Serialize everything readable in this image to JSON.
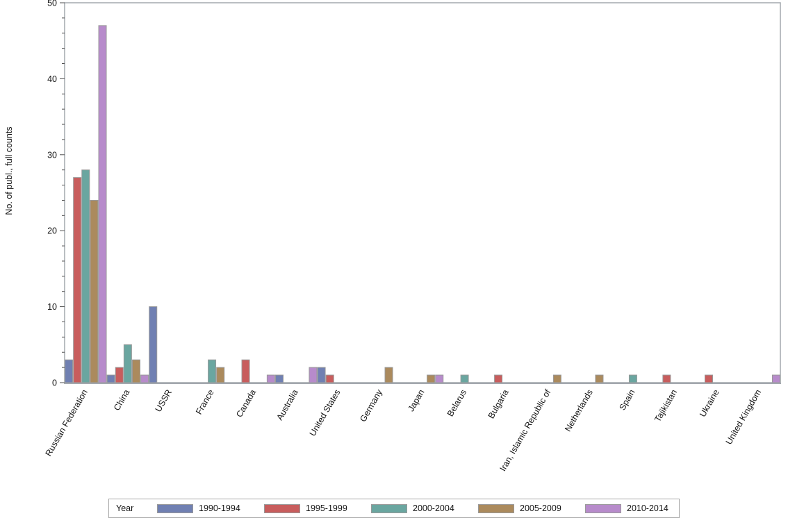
{
  "chart_data": {
    "type": "bar",
    "title": "",
    "xlabel": "",
    "ylabel": "No. of publ., full counts",
    "ylim": [
      0,
      50
    ],
    "ytick_major": 10,
    "ytick_minor": 2,
    "grid": false,
    "legend_position": "bottom",
    "legend_title": "Year",
    "frame_color": "#a3a8ae",
    "tick_color": "#4d4d4d",
    "bar_stroke_color": "#9a9a9a",
    "categories": [
      "Russian Federation",
      "China",
      "USSR",
      "France",
      "Canada",
      "Australia",
      "United States",
      "Germany",
      "Japan",
      "Belarus",
      "Bulgaria",
      "Iran, Islamic Republic of",
      "Netherlands",
      "Spain",
      "Tajikistan",
      "Ukraine",
      "United Kingdom"
    ],
    "series": [
      {
        "name": "1990-1994",
        "color": "#7080b2",
        "values": [
          3,
          1,
          10,
          0,
          0,
          1,
          2,
          0,
          0,
          0,
          0,
          0,
          0,
          0,
          0,
          0,
          0
        ]
      },
      {
        "name": "1995-1999",
        "color": "#c85d5d",
        "values": [
          27,
          2,
          0,
          0,
          3,
          0,
          1,
          0,
          0,
          0,
          1,
          0,
          0,
          0,
          1,
          1,
          0
        ]
      },
      {
        "name": "2000-2004",
        "color": "#6aa6a0",
        "values": [
          28,
          5,
          0,
          3,
          0,
          0,
          0,
          0,
          0,
          1,
          0,
          0,
          0,
          1,
          0,
          0,
          0
        ]
      },
      {
        "name": "2005-2009",
        "color": "#ab8a5d",
        "values": [
          24,
          3,
          0,
          2,
          0,
          0,
          0,
          2,
          1,
          0,
          0,
          1,
          1,
          0,
          0,
          0,
          0
        ]
      },
      {
        "name": "2010-2014",
        "color": "#b78bcb",
        "values": [
          47,
          1,
          0,
          0,
          1,
          2,
          0,
          0,
          1,
          0,
          0,
          0,
          0,
          0,
          0,
          0,
          1
        ]
      }
    ]
  }
}
